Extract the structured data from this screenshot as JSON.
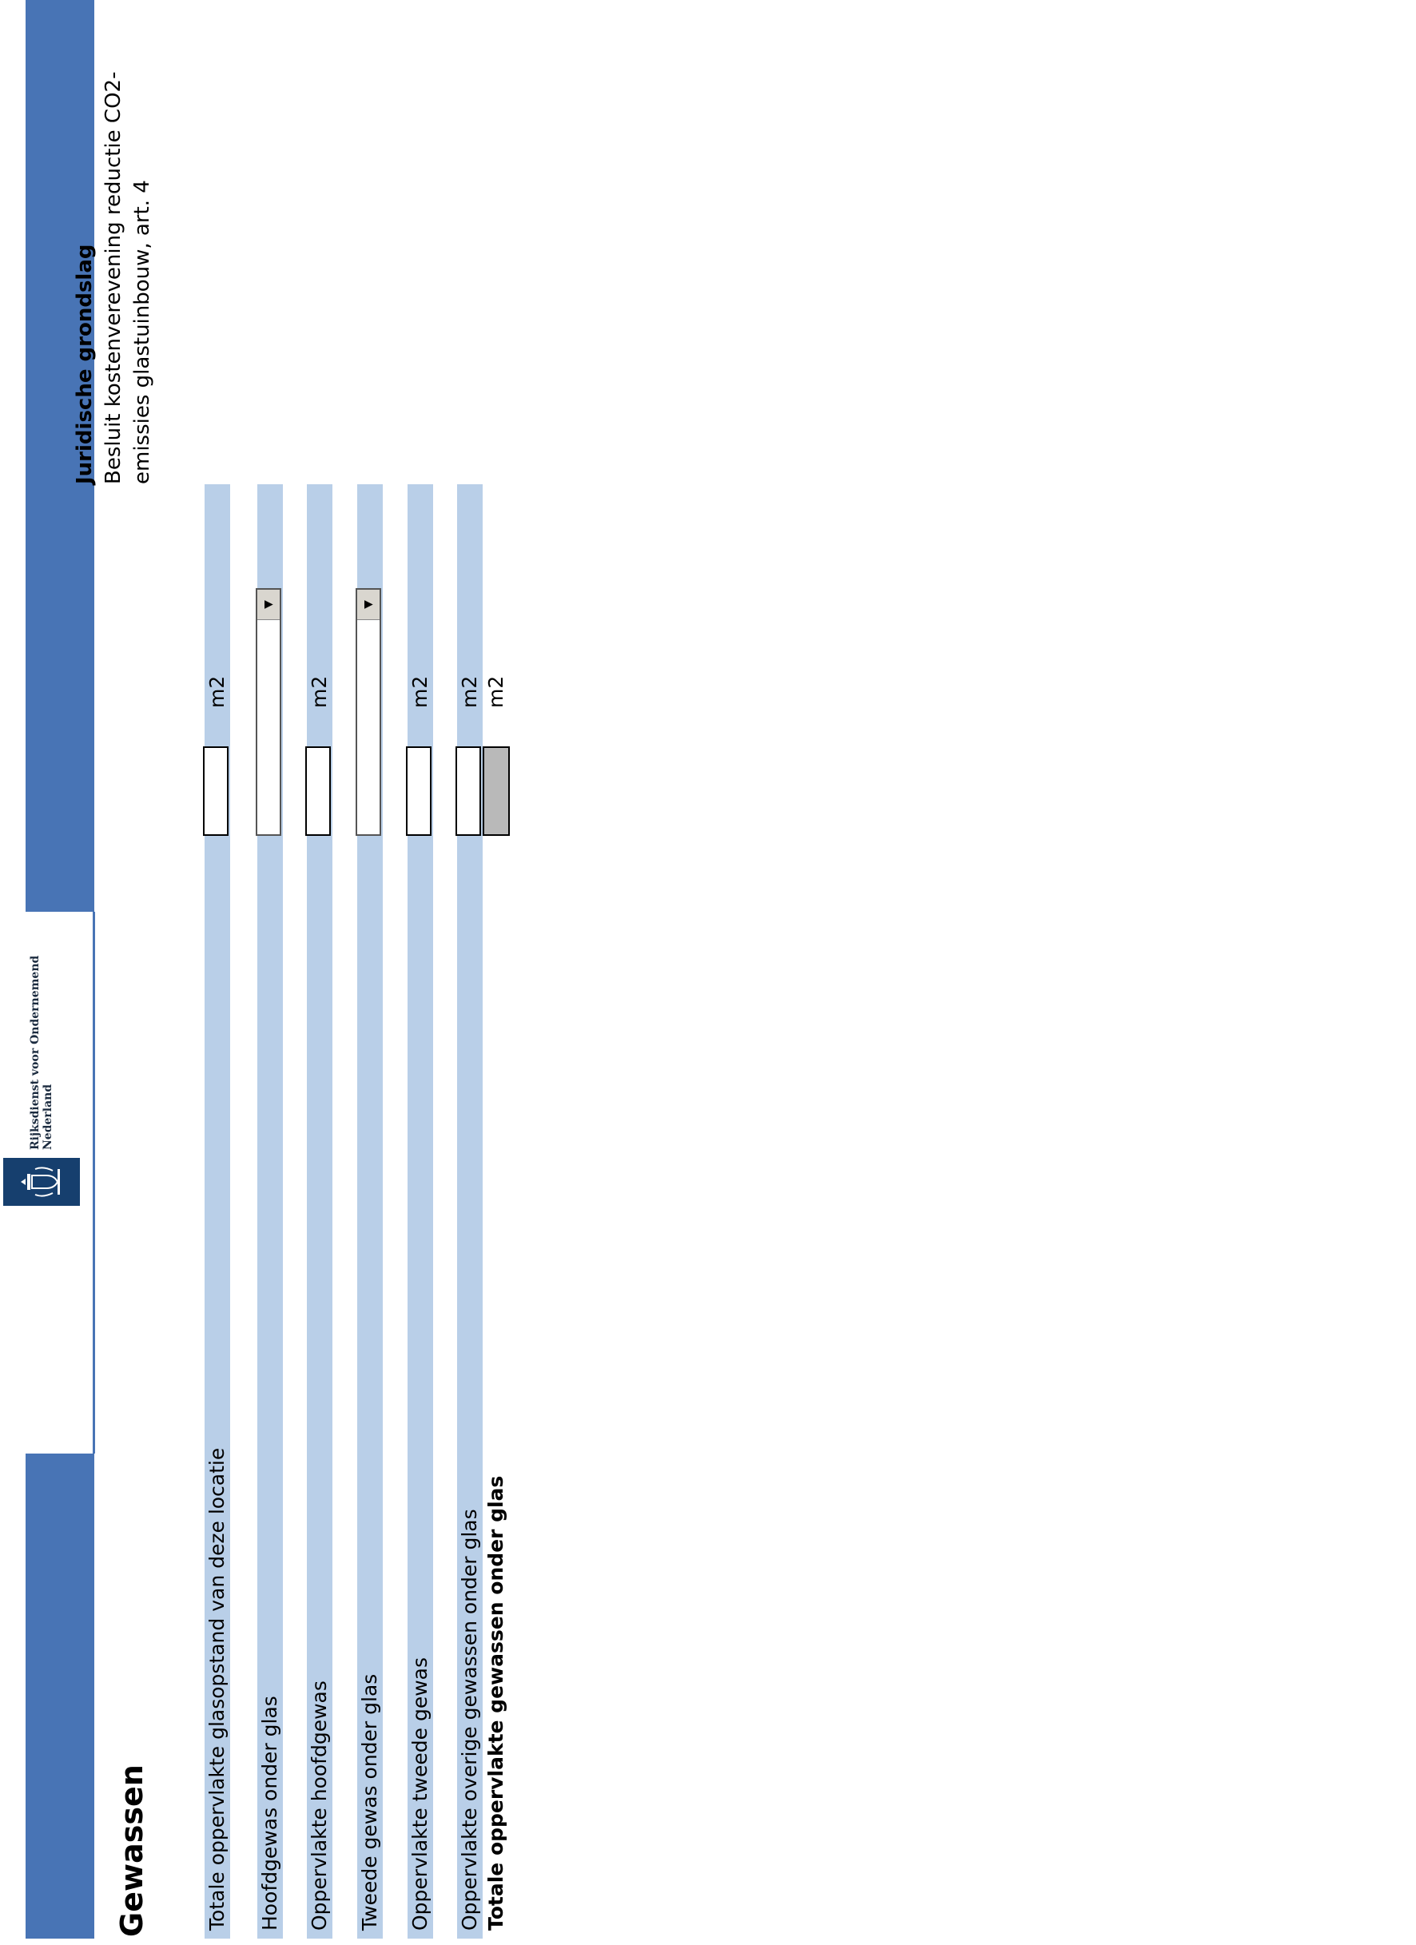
{
  "header": {
    "logo": {
      "icon": "royal-coat-of-arms-icon",
      "name_line1": "Rijksdienst voor Ondernemend",
      "name_line2": "Nederland"
    },
    "accent_color": "#4874b5",
    "logo_color": "#163f6e"
  },
  "legal_basis": {
    "title": "Juridische grondslag",
    "line1": "Besluit kostenverevening reductie CO2-",
    "line2": "emissies glastuinbouw, art. 4"
  },
  "section": {
    "title": "Gewassen"
  },
  "fields": [
    {
      "label": "Totale oppervlakte glasopstand van deze locatie",
      "type": "input",
      "value": "",
      "unit": "m2"
    },
    {
      "label": "Hoofdgewas onder glas",
      "type": "select",
      "value": "",
      "unit": ""
    },
    {
      "label": "Oppervlakte hoofdgewas",
      "type": "input",
      "value": "",
      "unit": "m2"
    },
    {
      "label": "Tweede gewas onder glas",
      "type": "select",
      "value": "",
      "unit": ""
    },
    {
      "label": "Oppervlakte tweede gewas",
      "type": "input",
      "value": "",
      "unit": "m2"
    },
    {
      "label": "Oppervlakte overige gewassen onder glas",
      "type": "input",
      "value": "",
      "unit": "m2"
    }
  ],
  "total": {
    "label": "Totale oppervlakte gewassen onder glas",
    "value": "",
    "unit": "m2"
  },
  "row_color": "#b9cfe8"
}
